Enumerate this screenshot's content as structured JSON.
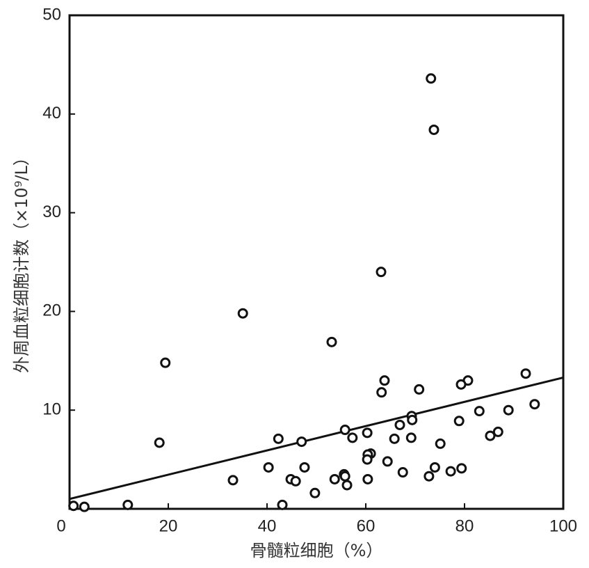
{
  "chart_data": {
    "type": "scatter",
    "x_label": "骨髓粒细胞（%）",
    "y_label": "外周血粒细胞计数（×10⁹/L）",
    "xlim": [
      0,
      100
    ],
    "ylim": [
      0,
      50
    ],
    "xticks": [
      0,
      20,
      40,
      60,
      80,
      100
    ],
    "yticks": [
      10,
      20,
      30,
      40,
      50
    ],
    "color": "#111111",
    "x": [
      73.2,
      73.8,
      63.1,
      35.1,
      53.1,
      19.4,
      63.8,
      92.4,
      80.7,
      79.3,
      70.8,
      63.2,
      94.2,
      88.9,
      83.0,
      69.3,
      69.4,
      78.9,
      66.9,
      55.8,
      60.3,
      86.8,
      85.2,
      42.3,
      57.3,
      65.8,
      69.2,
      18.2,
      47.0,
      75.1,
      61.0,
      60.4,
      60.3,
      64.4,
      40.3,
      47.6,
      74.0,
      79.4,
      77.2,
      67.5,
      55.6,
      55.8,
      72.8,
      33.1,
      44.8,
      53.7,
      60.4,
      45.8,
      56.2,
      49.7,
      11.8,
      43.1,
      0.8,
      3.0
    ],
    "values": [
      43.6,
      38.4,
      24.0,
      19.8,
      16.9,
      14.8,
      13.0,
      13.7,
      13.0,
      12.6,
      12.1,
      11.8,
      10.6,
      10.0,
      9.9,
      9.4,
      9.0,
      8.9,
      8.5,
      8.0,
      7.7,
      7.8,
      7.4,
      7.1,
      7.2,
      7.1,
      7.2,
      6.7,
      6.8,
      6.6,
      5.6,
      5.5,
      5.0,
      4.8,
      4.2,
      4.2,
      4.2,
      4.1,
      3.8,
      3.7,
      3.5,
      3.3,
      3.3,
      2.9,
      3.0,
      3.0,
      3.0,
      2.8,
      2.4,
      1.6,
      0.4,
      0.4,
      0.3,
      0.2
    ],
    "trend_line": {
      "x": [
        0,
        100
      ],
      "y": [
        1.0,
        13.3
      ]
    }
  }
}
